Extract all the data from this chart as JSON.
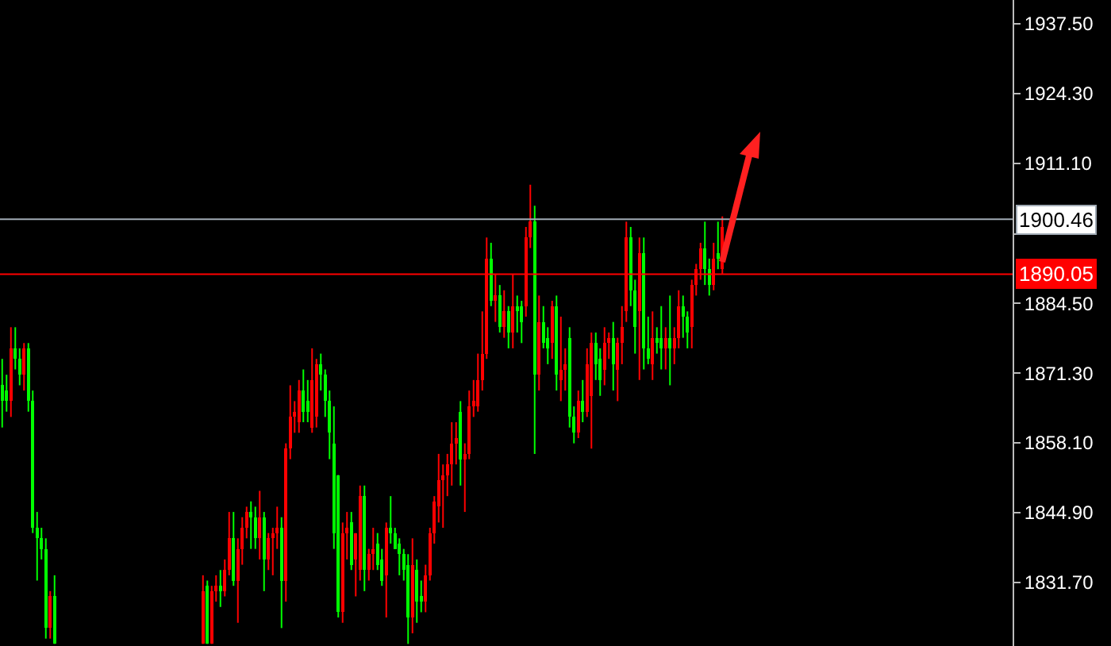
{
  "chart_data": {
    "type": "candlestick",
    "categories": [
      null,
      null,
      null,
      null,
      null,
      null,
      null,
      null,
      null,
      null,
      null,
      null,
      null,
      null,
      null,
      null,
      null,
      null,
      null,
      null,
      null,
      null,
      null,
      null,
      null,
      null,
      null,
      null,
      null,
      null,
      null,
      null,
      null,
      null,
      null,
      null,
      null,
      null,
      null,
      null,
      null,
      null,
      null,
      null,
      null,
      null,
      null,
      null,
      null,
      null,
      null,
      null,
      null,
      null,
      null,
      null,
      null,
      null,
      null,
      null,
      null,
      null,
      null,
      null,
      null,
      null,
      null,
      null,
      null,
      null,
      null,
      null,
      null,
      null,
      null,
      null,
      null,
      null,
      null,
      null,
      null,
      null,
      null,
      null,
      null,
      null,
      null,
      null,
      null,
      null,
      null,
      null,
      null,
      null,
      null,
      null,
      null,
      null,
      null,
      null,
      null,
      null,
      null,
      null,
      null,
      null,
      null,
      null,
      null,
      null,
      null,
      null,
      null,
      null,
      null,
      null,
      null,
      null,
      null,
      null,
      null,
      null,
      null,
      null,
      null,
      null,
      null,
      null,
      null,
      null,
      null,
      null,
      null,
      null,
      null,
      null,
      null,
      null,
      null,
      null,
      null,
      null,
      null,
      null,
      null,
      null,
      null,
      null,
      null,
      null,
      null,
      null,
      null,
      null,
      null,
      null,
      null,
      null,
      null,
      null,
      null,
      null,
      null,
      null,
      null,
      null,
      null,
      null,
      null,
      null,
      null,
      null,
      null,
      null,
      null,
      null,
      null,
      null,
      null,
      null,
      null,
      null,
      null,
      null,
      null,
      null,
      null,
      null,
      null,
      null,
      null,
      null,
      null,
      null,
      null,
      null,
      null,
      null,
      null,
      null,
      null,
      null,
      null,
      null,
      null,
      null,
      null,
      null,
      null,
      null,
      null,
      null,
      null,
      null,
      null,
      null,
      null,
      null,
      null,
      null,
      null,
      null,
      null,
      null,
      null,
      null,
      null,
      null,
      null,
      null,
      null,
      null
    ],
    "ohlc": [
      [
        1869,
        1874,
        1861,
        1866
      ],
      [
        1868,
        1871,
        1864,
        1866
      ],
      [
        1866,
        1880,
        1863,
        1876
      ],
      [
        1876,
        1880,
        1872,
        1874
      ],
      [
        1874,
        1876,
        1869,
        1871
      ],
      [
        1871,
        1877,
        1868,
        1876
      ],
      [
        1876,
        1877,
        1864,
        1866
      ],
      [
        1866,
        1868,
        1841,
        1842
      ],
      [
        1842,
        1845,
        1832,
        1840
      ],
      [
        1840,
        1842,
        1836,
        1838
      ],
      [
        1838,
        1840,
        1821,
        1823
      ],
      [
        1823,
        1830,
        1821,
        1829
      ],
      [
        1829,
        1833,
        1820,
        1820
      ],
      null,
      null,
      null,
      null,
      null,
      null,
      null,
      null,
      null,
      null,
      null,
      null,
      null,
      null,
      null,
      null,
      null,
      null,
      null,
      null,
      null,
      null,
      null,
      null,
      null,
      null,
      null,
      null,
      null,
      null,
      null,
      null,
      null,
      [
        1820,
        1833,
        1820,
        1830
      ],
      [
        1831,
        1832,
        1820,
        1820
      ],
      [
        1820,
        1831,
        1820,
        1830
      ],
      [
        1830,
        1833,
        1828,
        1831
      ],
      [
        1831,
        1834,
        1827,
        1830
      ],
      [
        1830,
        1836,
        1829,
        1834
      ],
      [
        1834,
        1845,
        1833,
        1840
      ],
      [
        1840,
        1845,
        1831,
        1832
      ],
      [
        1832,
        1840,
        1824,
        1838
      ],
      [
        1838,
        1844,
        1835,
        1842
      ],
      [
        1842,
        1846,
        1840,
        1845
      ],
      [
        1845,
        1847,
        1838,
        1844
      ],
      [
        1844,
        1846,
        1838,
        1840
      ],
      [
        1840,
        1849,
        1836,
        1844
      ],
      [
        1844,
        1845,
        1830,
        1836
      ],
      [
        1836,
        1841,
        1834,
        1840
      ],
      [
        1840,
        1842,
        1833,
        1841
      ],
      [
        1841,
        1846,
        1838,
        1842
      ],
      [
        1842,
        1844,
        1823,
        1832
      ],
      [
        1832,
        1858,
        1828,
        1857
      ],
      [
        1857,
        1869,
        1855,
        1863
      ],
      [
        1863,
        1866,
        1860,
        1864
      ],
      [
        1862,
        1870,
        1860,
        1868
      ],
      [
        1868,
        1872,
        1862,
        1864
      ],
      [
        1866,
        1870,
        1862,
        1864
      ],
      [
        1861,
        1876,
        1860,
        1870
      ],
      [
        1863,
        1874,
        1861,
        1873
      ],
      [
        1873,
        1875,
        1868,
        1871
      ],
      [
        1871,
        1872,
        1863,
        1866
      ],
      [
        1866,
        1868,
        1855,
        1860
      ],
      [
        1858,
        1865,
        1838,
        1841
      ],
      [
        1852,
        1852,
        1825,
        1826
      ],
      [
        1826,
        1843,
        1824,
        1841
      ],
      [
        1841,
        1845,
        1836,
        1842
      ],
      [
        1843,
        1845,
        1834,
        1835
      ],
      [
        1836,
        1841,
        1829,
        1841
      ],
      [
        1834,
        1850,
        1832,
        1848
      ],
      [
        1848,
        1850,
        1830,
        1834
      ],
      [
        1834,
        1838,
        1832,
        1837
      ],
      [
        1837,
        1842,
        1834,
        1838
      ],
      [
        1839,
        1841,
        1834,
        1835
      ],
      [
        1836,
        1838,
        1831,
        1832
      ],
      [
        1833,
        1843,
        1825,
        1842
      ],
      [
        1842,
        1848,
        1839,
        1841
      ],
      [
        1841,
        1842,
        1838,
        1838
      ],
      [
        1839,
        1840,
        1833,
        1837
      ],
      [
        1837,
        1838,
        1832,
        1834
      ],
      [
        1835,
        1837,
        1820,
        1825
      ],
      [
        1825,
        1840,
        1822,
        1835
      ],
      [
        1834,
        1836,
        1824,
        1828
      ],
      [
        1829,
        1832,
        1826,
        1828
      ],
      [
        1828,
        1835,
        1826,
        1833
      ],
      [
        1833,
        1842,
        1832,
        1841
      ],
      [
        1841,
        1848,
        1839,
        1847
      ],
      [
        1846,
        1856,
        1843,
        1851
      ],
      [
        1851,
        1854,
        1842,
        1852
      ],
      [
        1852,
        1856,
        1848,
        1854
      ],
      [
        1854,
        1862,
        1850,
        1858
      ],
      [
        1858,
        1862,
        1854,
        1859
      ],
      [
        1864,
        1866,
        1850,
        1855
      ],
      [
        1855,
        1858,
        1845,
        1856
      ],
      [
        1856,
        1868,
        1855,
        1865
      ],
      [
        1865,
        1870,
        1863,
        1866
      ],
      [
        1865,
        1875,
        1864,
        1870
      ],
      [
        1870,
        1883,
        1868,
        1875
      ],
      [
        1875,
        1897,
        1874,
        1893
      ],
      [
        1893,
        1896,
        1884,
        1885
      ],
      [
        1885,
        1890,
        1881,
        1886
      ],
      [
        1886,
        1888,
        1879,
        1880
      ],
      [
        1880,
        1887,
        1878,
        1883
      ],
      [
        1883,
        1884,
        1876,
        1879
      ],
      [
        1879,
        1890,
        1876,
        1884
      ],
      [
        1884,
        1886,
        1879,
        1883
      ],
      [
        1884,
        1885,
        1877,
        1881
      ],
      [
        1884,
        1899,
        1882,
        1897
      ],
      [
        1897,
        1907,
        1895,
        1900
      ],
      [
        1900,
        1903,
        1856,
        1871
      ],
      [
        1871,
        1886,
        1868,
        1881
      ],
      [
        1881,
        1884,
        1876,
        1877
      ],
      [
        1878,
        1880,
        1873,
        1876
      ],
      [
        1877,
        1885,
        1874,
        1884
      ],
      [
        1884,
        1886,
        1868,
        1871
      ],
      [
        1870,
        1882,
        1866,
        1872
      ],
      [
        1872,
        1876,
        1868,
        1873
      ],
      [
        1878,
        1880,
        1861,
        1863
      ],
      [
        1863,
        1865,
        1858,
        1860
      ],
      [
        1860,
        1868,
        1859,
        1866
      ],
      [
        1866,
        1870,
        1862,
        1864
      ],
      [
        1864,
        1876,
        1863,
        1873
      ],
      [
        1867,
        1879,
        1857,
        1877
      ],
      [
        1877,
        1879,
        1870,
        1873
      ],
      [
        1874,
        1876,
        1867,
        1870
      ],
      [
        1872,
        1880,
        1869,
        1877
      ],
      [
        1877,
        1879,
        1874,
        1878
      ],
      [
        1878,
        1881,
        1868,
        1873
      ],
      [
        1872,
        1878,
        1866,
        1877
      ],
      [
        1877,
        1884,
        1873,
        1880
      ],
      [
        1883,
        1900,
        1881,
        1897
      ],
      [
        1897,
        1899,
        1884,
        1887
      ],
      [
        1887,
        1889,
        1875,
        1880
      ],
      [
        1883,
        1897,
        1870,
        1894
      ],
      [
        1894,
        1897,
        1872,
        1876
      ],
      [
        1876,
        1882,
        1873,
        1874
      ],
      [
        1873,
        1883,
        1870,
        1878
      ],
      [
        1878,
        1880,
        1875,
        1877
      ],
      [
        1878,
        1884,
        1872,
        1876
      ],
      [
        1876,
        1880,
        1872,
        1878
      ],
      [
        1878,
        1886,
        1869,
        1876
      ],
      [
        1876,
        1880,
        1873,
        1878
      ],
      [
        1878,
        1887,
        1876,
        1884
      ],
      [
        1884,
        1886,
        1878,
        1882
      ],
      [
        1882,
        1883,
        1876,
        1879
      ],
      [
        1880,
        1889,
        1876,
        1888
      ],
      [
        1888,
        1892,
        1886,
        1891
      ],
      [
        1891,
        1896,
        1889,
        1895
      ],
      [
        1895,
        1900,
        1888,
        1891
      ],
      [
        1891,
        1893,
        1886,
        1888
      ],
      [
        1888,
        1896,
        1887,
        1893
      ],
      [
        1894,
        1900,
        1891,
        1893
      ],
      [
        1891,
        1901,
        1890,
        1899
      ],
      null,
      null,
      null,
      null,
      null,
      null,
      null,
      null,
      null,
      null,
      null,
      null,
      null,
      null,
      null,
      null,
      null,
      null,
      null,
      null,
      null,
      null,
      null,
      null,
      null,
      null,
      null,
      null,
      null,
      null,
      null,
      null,
      null,
      null,
      null,
      null,
      null,
      null,
      null,
      null,
      null,
      null,
      null,
      null,
      null,
      null,
      null,
      null,
      null,
      null,
      null,
      null,
      null,
      null,
      null,
      null,
      null,
      null,
      null,
      null,
      null,
      null,
      null,
      null,
      null,
      null
    ],
    "colors": [
      "#00ff00",
      "#00ff00",
      "#ff0000",
      "#00ff00",
      "#00ff00",
      "#ff0000",
      "#00ff00",
      "#00ff00",
      "#00ff00",
      "#00ff00",
      "#00ff00",
      "#ff0000",
      "#00ff00",
      null,
      null,
      null,
      null,
      null,
      null,
      null,
      null,
      null,
      null,
      null,
      null,
      null,
      null,
      null,
      null,
      null,
      null,
      null,
      null,
      null,
      null,
      null,
      null,
      null,
      null,
      null,
      null,
      null,
      null,
      null,
      null,
      null,
      "#ff0000",
      "#00ff00",
      "#ff0000",
      "#ff0000",
      "#00ff00",
      "#ff0000",
      "#ff0000",
      "#00ff00",
      "#ff0000",
      "#ff0000",
      "#ff0000",
      "#00ff00",
      "#00ff00",
      "#ff0000",
      "#00ff00",
      "#ff0000",
      "#ff0000",
      "#ff0000",
      "#00ff00",
      "#ff0000",
      "#ff0000",
      "#ff0000",
      "#ff0000",
      "#00ff00",
      "#00ff00",
      "#ff0000",
      "#ff0000",
      "#00ff00",
      "#00ff00",
      "#00ff00",
      "#00ff00",
      "#00ff00",
      "#ff0000",
      "#ff0000",
      "#00ff00",
      "#ff0000",
      "#ff0000",
      "#00ff00",
      "#ff0000",
      "#ff0000",
      "#00ff00",
      "#00ff00",
      "#ff0000",
      "#00ff00",
      "#00ff00",
      "#00ff00",
      "#00ff00",
      "#00ff00",
      "#ff0000",
      "#00ff00",
      "#00ff00",
      "#ff0000",
      "#ff0000",
      "#ff0000",
      "#ff0000",
      "#ff0000",
      "#ff0000",
      "#ff0000",
      "#ff0000",
      "#00ff00",
      "#ff0000",
      "#ff0000",
      "#ff0000",
      "#ff0000",
      "#ff0000",
      "#ff0000",
      "#00ff00",
      "#ff0000",
      "#00ff00",
      "#ff0000",
      "#00ff00",
      "#ff0000",
      "#00ff00",
      "#00ff00",
      "#ff0000",
      "#ff0000",
      "#00ff00",
      "#ff0000",
      "#00ff00",
      "#00ff00",
      "#ff0000",
      "#00ff00",
      "#ff0000",
      "#ff0000",
      "#00ff00",
      "#00ff00",
      "#ff0000",
      "#00ff00",
      "#ff0000",
      "#ff0000",
      "#00ff00",
      "#00ff00",
      "#ff0000",
      "#ff0000",
      "#00ff00",
      "#ff0000",
      "#ff0000",
      "#ff0000",
      "#00ff00",
      "#00ff00",
      "#ff0000",
      "#00ff00",
      "#00ff00",
      "#ff0000",
      "#00ff00",
      "#00ff00",
      "#ff0000",
      "#00ff00",
      "#ff0000",
      "#ff0000",
      "#00ff00",
      "#00ff00",
      "#ff0000",
      "#ff0000",
      "#ff0000",
      "#00ff00",
      "#00ff00",
      "#ff0000",
      "#00ff00",
      "#ff0000",
      null,
      null,
      null,
      null,
      null,
      null,
      null,
      null,
      null,
      null,
      null,
      null,
      null,
      null,
      null,
      null,
      null,
      null,
      null,
      null,
      null,
      null,
      null,
      null,
      null,
      null,
      null,
      null,
      null,
      null,
      null,
      null,
      null,
      null,
      null,
      null,
      null,
      null,
      null,
      null,
      null,
      null,
      null,
      null,
      null,
      null,
      null,
      null,
      null,
      null,
      null,
      null,
      null,
      null,
      null,
      null,
      null,
      null,
      null,
      null,
      null,
      null,
      null,
      null,
      null,
      null
    ],
    "ylim": [
      1819.6,
      1942.0
    ],
    "yticks": [
      {
        "value": 1831.7,
        "label": "1831.70"
      },
      {
        "value": 1844.9,
        "label": "1844.90"
      },
      {
        "value": 1858.1,
        "label": "1858.10"
      },
      {
        "value": 1871.3,
        "label": "1871.30"
      },
      {
        "value": 1884.5,
        "label": "1884.50"
      },
      {
        "value": 1897.7,
        "label": null
      },
      {
        "value": 1911.1,
        "label": "1911.10"
      },
      {
        "value": 1924.3,
        "label": "1924.30"
      },
      {
        "value": 1937.5,
        "label": "1937.50"
      }
    ],
    "ref_lines": [
      {
        "axis": "y",
        "value": 1900.46,
        "label": "1900.46",
        "color": "#a0aab4"
      },
      {
        "axis": "y",
        "value": 1890.05,
        "label": "1890.05",
        "color": "#ff0000"
      }
    ],
    "tick_labels": "y"
  }
}
